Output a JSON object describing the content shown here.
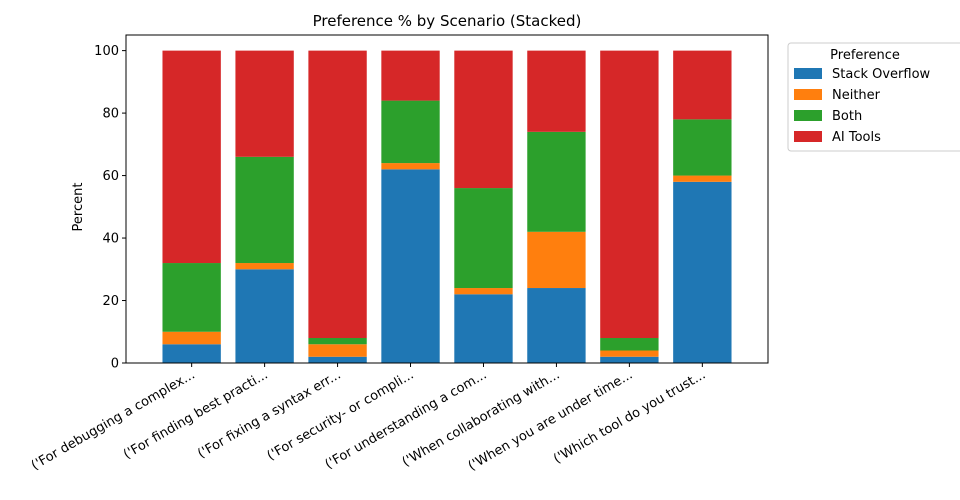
{
  "chart_data": {
    "type": "bar",
    "stacked": true,
    "title": "Preference % by Scenario (Stacked)",
    "xlabel": "",
    "ylabel": "Percent",
    "ylim": [
      0,
      105
    ],
    "yticks": [
      0,
      20,
      40,
      60,
      80,
      100
    ],
    "grid": false,
    "legend": {
      "title": "Preference",
      "position": "outside-top-right"
    },
    "categories": [
      "('For debugging a complex...",
      "('For finding best practi...",
      "('For fixing a syntax err...",
      "('For security- or compli...",
      "('For understanding a com...",
      "('When collaborating with...",
      "('When you are under time...",
      "('Which tool do you trust..."
    ],
    "series": [
      {
        "name": "Stack Overflow",
        "color": "#1f77b4",
        "values": [
          6,
          30,
          2,
          62,
          22,
          24,
          2,
          58
        ]
      },
      {
        "name": "Neither",
        "color": "#ff7f0e",
        "values": [
          4,
          2,
          4,
          2,
          2,
          18,
          2,
          2
        ]
      },
      {
        "name": "Both",
        "color": "#2ca02c",
        "values": [
          22,
          34,
          2,
          20,
          32,
          32,
          4,
          18
        ]
      },
      {
        "name": "AI Tools",
        "color": "#d62728",
        "values": [
          68,
          34,
          92,
          16,
          44,
          26,
          92,
          22
        ]
      }
    ]
  }
}
